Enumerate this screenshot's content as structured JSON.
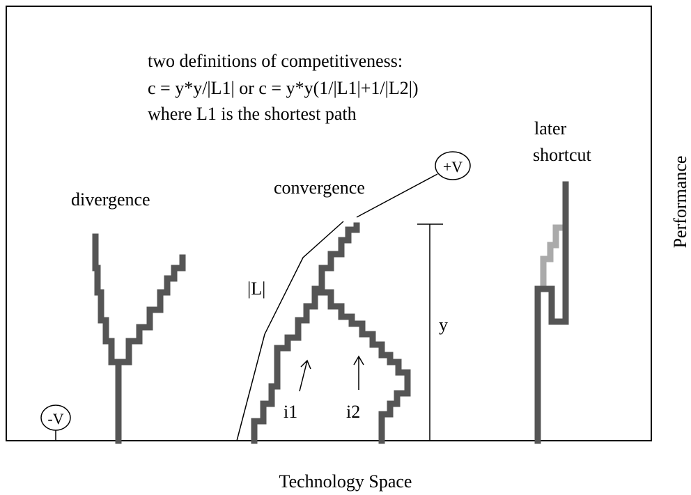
{
  "definitions": [
    "two definitions of competitiveness:",
    "c = y*y/|L1| or c = y*y(1/|L1|+1/|L2|)",
    "where L1 is the shortest path"
  ],
  "labels": {
    "divergence": "divergence",
    "convergence": "convergence",
    "later": "later",
    "shortcut": "shortcut",
    "plus_v": "+V",
    "minus_v": "-V",
    "path_length": "|L|",
    "height": "y",
    "i1": "i1",
    "i2": "i2"
  },
  "axes": {
    "x": "Technology Space",
    "y": "Performance"
  }
}
